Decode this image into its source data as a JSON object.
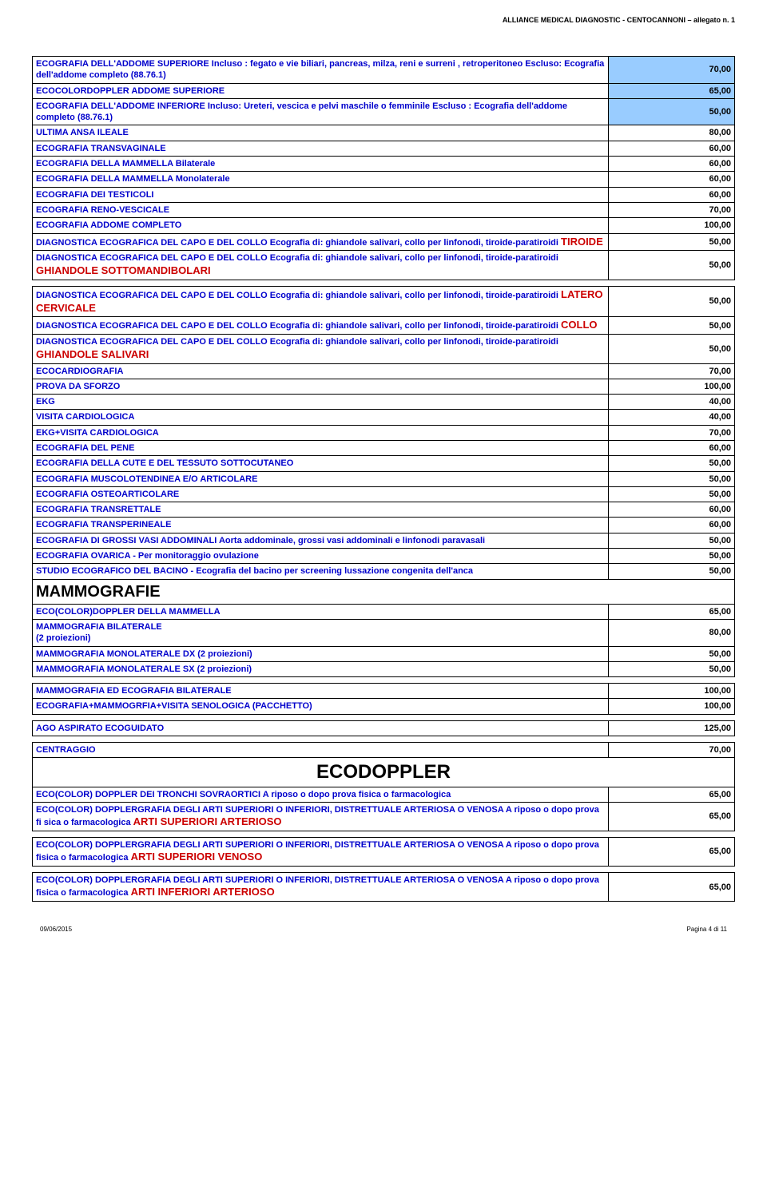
{
  "header": "ALLIANCE MEDICAL DIAGNOSTIC - CENTOCANNONI – allegato n. 1",
  "footer": {
    "date": "09/06/2015",
    "page": "Pagina 4 di 11"
  },
  "colors": {
    "blue_text": "#0000cc",
    "red_text": "#cc0000",
    "black_text": "#000000",
    "highlight_bg": "#99ccff",
    "border": "#000000",
    "background": "#ffffff"
  },
  "typography": {
    "body_font": "Arial",
    "row_fontsize": 11,
    "header_fontsize": 9,
    "section_fontsize": 20,
    "big_section_fontsize": 24
  },
  "rows": [
    {
      "desc": "ECOGRAFIA DELL'ADDOME SUPERIORE Incluso : fegato e vie biliari, pancreas, milza, reni e surreni , retroperitoneo Escluso: Ecografia dell'addome completo (88.76.1)",
      "price": "70,00",
      "highlight": true
    },
    {
      "desc": "ECOCOLORDOPPLER  ADDOME  SUPERIORE",
      "price": "65,00",
      "highlight": true
    },
    {
      "desc": "ECOGRAFIA DELL'ADDOME INFERIORE                              Incluso: Ureteri, vescica e pelvi maschile o femminile  Escluso : Ecografia dell'addome completo (88.76.1)",
      "price": "50,00",
      "highlight": true
    },
    {
      "desc": "ULTIMA ANSA ILEALE",
      "price": "80,00"
    },
    {
      "desc": "ECOGRAFIA TRANSVAGINALE",
      "price": "60,00"
    },
    {
      "desc": "ECOGRAFIA DELLA MAMMELLA Bilaterale",
      "price": "60,00"
    },
    {
      "desc": "ECOGRAFIA DELLA MAMMELLA Monolaterale",
      "price": "60,00"
    },
    {
      "desc": "ECOGRAFIA DEI TESTICOLI",
      "price": "60,00"
    },
    {
      "desc": "ECOGRAFIA RENO-VESCICALE",
      "price": "70,00"
    },
    {
      "desc": "ECOGRAFIA ADDOME COMPLETO",
      "price": "100,00"
    },
    {
      "desc": "DIAGNOSTICA ECOGRAFICA DEL CAPO E DEL COLLO Ecografia di: ghiandole salivari, collo per linfonodi, tiroide-paratiroidi            ",
      "red": "TIROIDE",
      "price": "50,00"
    },
    {
      "desc": "DIAGNOSTICA ECOGRAFICA DEL CAPO E DEL COLLO Ecografia di: ghiandole salivari, collo per linfonodi, tiroide-paratiroidi            ",
      "red": "GHIANDOLE SOTTOMANDIBOLARI",
      "price": "50,00"
    },
    {
      "spacer": true
    },
    {
      "desc": "DIAGNOSTICA ECOGRAFICA DEL CAPO E DEL COLLO Ecografia di: ghiandole salivari, collo per linfonodi, tiroide-paratiroidi            ",
      "red": "LATERO CERVICALE",
      "price": "50,00"
    },
    {
      "desc": "DIAGNOSTICA ECOGRAFICA DEL CAPO E DEL COLLO Ecografia di: ghiandole salivari, collo per linfonodi, tiroide-paratiroidi            ",
      "red": "COLLO",
      "price": "50,00"
    },
    {
      "desc": "DIAGNOSTICA ECOGRAFICA DEL CAPO E DEL COLLO Ecografia di: ghiandole salivari, collo per linfonodi, tiroide-paratiroidi            ",
      "red": "GHIANDOLE SALIVARI",
      "price": "50,00"
    },
    {
      "desc": "ECOCARDIOGRAFIA",
      "price": "70,00"
    },
    {
      "desc": "PROVA  DA SFORZO",
      "price": "100,00"
    },
    {
      "desc": "EKG",
      "price": "40,00"
    },
    {
      "desc": "VISITA CARDIOLOGICA",
      "price": "40,00"
    },
    {
      "desc": "EKG+VISITA CARDIOLOGICA",
      "price": "70,00"
    },
    {
      "desc": "ECOGRAFIA DEL PENE",
      "price": "60,00"
    },
    {
      "desc": "ECOGRAFIA DELLA CUTE E DEL TESSUTO SOTTOCUTANEO",
      "price": "50,00"
    },
    {
      "desc": "ECOGRAFIA MUSCOLOTENDINEA E/O ARTICOLARE",
      "price": "50,00"
    },
    {
      "desc": "ECOGRAFIA OSTEOARTICOLARE",
      "price": "50,00"
    },
    {
      "desc": "ECOGRAFIA TRANSRETTALE",
      "price": "60,00"
    },
    {
      "desc": "ECOGRAFIA  TRANSPERINEALE",
      "price": "60,00"
    },
    {
      "desc": "ECOGRAFIA DI GROSSI VASI ADDOMINALI Aorta addominale, grossi vasi addominali e linfonodi paravasali",
      "price": "50,00"
    },
    {
      "desc": "ECOGRAFIA OVARICA - Per monitoraggio ovulazione",
      "price": "50,00"
    },
    {
      "desc": "STUDIO ECOGRAFICO DEL BACINO - Ecografia del bacino per screening lussazione congenita dell'anca",
      "price": "50,00"
    },
    {
      "section": "MAMMOGRAFIE"
    },
    {
      "desc": "ECO(COLOR)DOPPLER DELLA MAMMELLA",
      "price": "65,00"
    },
    {
      "desc": "MAMMOGRAFIA BILATERALE\n(2 proiezioni)",
      "price": "80,00"
    },
    {
      "desc": "MAMMOGRAFIA MONOLATERALE    DX                 (2 proiezioni)",
      "price": "50,00"
    },
    {
      "desc": "MAMMOGRAFIA MONOLATERALE    SX                 (2 proiezioni)",
      "price": "50,00"
    },
    {
      "spacer": true
    },
    {
      "desc": "MAMMOGRAFIA ED ECOGRAFIA BILATERALE",
      "price": "100,00"
    },
    {
      "desc": "ECOGRAFIA+MAMMOGRFIA+VISITA SENOLOGICA  (PACCHETTO)",
      "price": "100,00"
    },
    {
      "spacer": true
    },
    {
      "desc": "AGO ASPIRATO ECOGUIDATO",
      "price": "125,00"
    },
    {
      "spacer": true
    },
    {
      "desc": "CENTRAGGIO",
      "price": "70,00"
    },
    {
      "big_section": "ECODOPPLER"
    },
    {
      "desc": "ECO(COLOR) DOPPLER DEI TRONCHI SOVRAORTICI                                               A riposo o dopo prova fisica o farmacologica",
      "price": "65,00"
    },
    {
      "desc": "ECO(COLOR) DOPPLERGRAFIA DEGLI ARTI SUPERIORI O INFERIORI, DISTRETTUALE ARTERIOSA O VENOSA  A riposo o dopo prova fi sica o farmacologica                  ",
      "red_inline": "ARTI SUPERIORI ARTERIOSO",
      "price": "65,00"
    },
    {
      "spacer": true
    },
    {
      "desc": "ECO(COLOR) DOPPLERGRAFIA DEGLI ARTI SUPERIORI O INFERIORI, DISTRETTUALE ARTERIOSA O VENOSA  A riposo o dopo prova fisica o farmacologica                  ",
      "red_inline": "ARTI SUPERIORI VENOSO",
      "price": "65,00"
    },
    {
      "spacer": true
    },
    {
      "desc": "ECO(COLOR) DOPPLERGRAFIA DEGLI ARTI SUPERIORI O INFERIORI, DISTRETTUALE ARTERIOSA O VENOSA  A riposo o dopo prova fisica o farmacologica                  ",
      "red_inline": "ARTI INFERIORI ARTERIOSO",
      "price": "65,00"
    }
  ]
}
